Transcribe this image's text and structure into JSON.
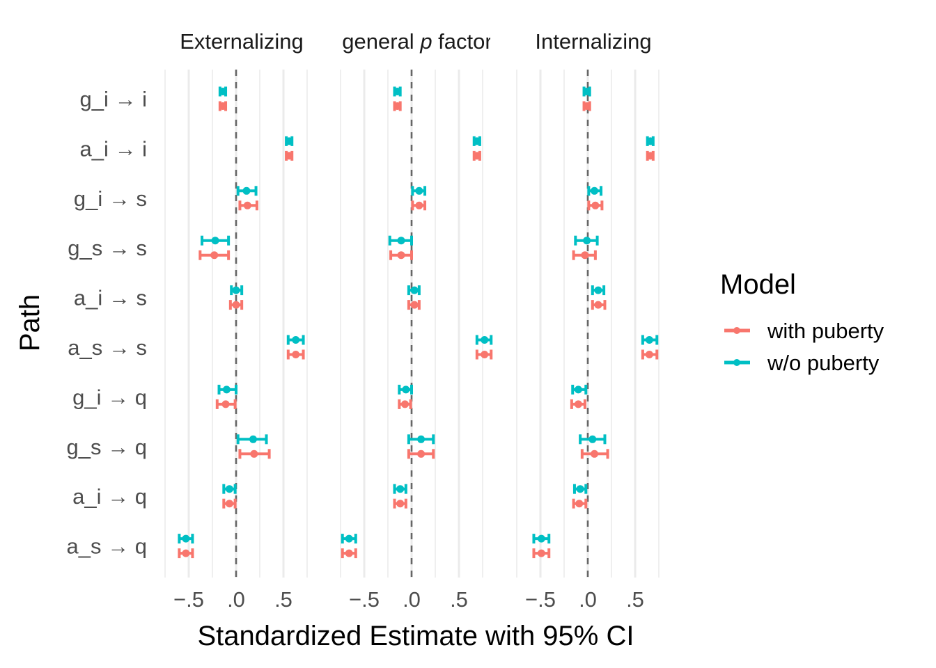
{
  "chart_data": {
    "type": "forest",
    "xlabel": "Standardized Estimate with 95% CI",
    "ylabel": "Path",
    "xlim": [
      -0.77,
      0.77
    ],
    "xticks": [
      -0.5,
      0.0,
      0.5
    ],
    "xtick_labels": [
      "−.5",
      ".0",
      ".5"
    ],
    "reference_line": 0,
    "grid": true,
    "categories": [
      "g_i → i",
      "a_i → i",
      "g_i → s",
      "g_s → s",
      "a_i → s",
      "a_s → s",
      "g_i → q",
      "g_s → q",
      "a_i → q",
      "a_s → q"
    ],
    "panels": [
      {
        "title": "Externalizing",
        "series": [
          {
            "name": "with puberty",
            "color": "#F8766D",
            "est": [
              -0.14,
              0.56,
              0.12,
              -0.23,
              0.0,
              0.63,
              -0.11,
              0.19,
              -0.07,
              -0.53
            ],
            "lo": [
              -0.17,
              0.53,
              0.04,
              -0.38,
              -0.06,
              0.55,
              -0.2,
              0.04,
              -0.13,
              -0.6
            ],
            "hi": [
              -0.11,
              0.59,
              0.22,
              -0.08,
              0.06,
              0.71,
              -0.01,
              0.35,
              -0.01,
              -0.46
            ]
          },
          {
            "name": "w/o puberty",
            "color": "#00BFC4",
            "est": [
              -0.14,
              0.56,
              0.11,
              -0.22,
              0.0,
              0.63,
              -0.1,
              0.18,
              -0.07,
              -0.53
            ],
            "lo": [
              -0.17,
              0.53,
              0.02,
              -0.36,
              -0.05,
              0.55,
              -0.18,
              0.02,
              -0.13,
              -0.6
            ],
            "hi": [
              -0.11,
              0.59,
              0.21,
              -0.08,
              0.06,
              0.71,
              0.0,
              0.32,
              -0.01,
              -0.46
            ]
          }
        ]
      },
      {
        "title": "general p factor",
        "title_prefix": "general ",
        "title_italic": "p",
        "title_suffix": " factor",
        "series": [
          {
            "name": "with puberty",
            "color": "#F8766D",
            "est": [
              -0.15,
              0.69,
              0.08,
              -0.11,
              0.03,
              0.77,
              -0.07,
              0.1,
              -0.12,
              -0.66
            ],
            "lo": [
              -0.18,
              0.66,
              0.01,
              -0.22,
              -0.03,
              0.69,
              -0.13,
              -0.03,
              -0.18,
              -0.73
            ],
            "hi": [
              -0.12,
              0.72,
              0.14,
              0.0,
              0.08,
              0.84,
              -0.01,
              0.23,
              -0.06,
              -0.59
            ]
          },
          {
            "name": "w/o puberty",
            "color": "#00BFC4",
            "est": [
              -0.15,
              0.69,
              0.08,
              -0.11,
              0.03,
              0.77,
              -0.06,
              0.1,
              -0.12,
              -0.66
            ],
            "lo": [
              -0.18,
              0.66,
              0.01,
              -0.23,
              -0.03,
              0.69,
              -0.13,
              -0.03,
              -0.18,
              -0.73
            ],
            "hi": [
              -0.12,
              0.72,
              0.14,
              0.0,
              0.08,
              0.84,
              0.0,
              0.23,
              -0.06,
              -0.59
            ]
          }
        ]
      },
      {
        "title": "Internalizing",
        "series": [
          {
            "name": "with puberty",
            "color": "#F8766D",
            "est": [
              -0.01,
              0.66,
              0.08,
              -0.03,
              0.11,
              0.65,
              -0.1,
              0.07,
              -0.09,
              -0.49
            ],
            "lo": [
              -0.04,
              0.63,
              0.01,
              -0.15,
              0.05,
              0.58,
              -0.17,
              -0.06,
              -0.15,
              -0.57
            ],
            "hi": [
              0.02,
              0.69,
              0.15,
              0.08,
              0.18,
              0.73,
              -0.03,
              0.21,
              -0.02,
              -0.41
            ]
          },
          {
            "name": "w/o puberty",
            "color": "#00BFC4",
            "est": [
              -0.01,
              0.66,
              0.07,
              -0.01,
              0.11,
              0.65,
              -0.1,
              0.05,
              -0.08,
              -0.49
            ],
            "lo": [
              -0.04,
              0.63,
              0.01,
              -0.13,
              0.05,
              0.58,
              -0.16,
              -0.08,
              -0.14,
              -0.57
            ],
            "hi": [
              0.02,
              0.69,
              0.14,
              0.1,
              0.17,
              0.73,
              -0.02,
              0.18,
              -0.02,
              -0.41
            ]
          }
        ]
      }
    ],
    "legend": {
      "title": "Model",
      "position": "right",
      "entries": [
        {
          "label": "with puberty",
          "color": "#F8766D"
        },
        {
          "label": "w/o puberty",
          "color": "#00BFC4"
        }
      ]
    }
  }
}
